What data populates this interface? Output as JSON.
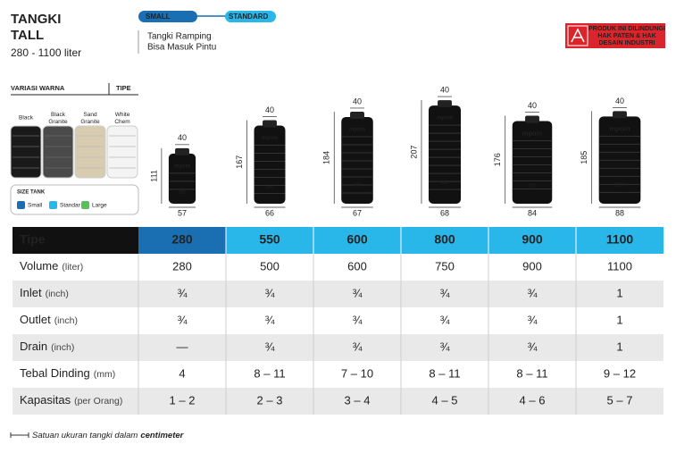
{
  "header": {
    "title": [
      "TANGKI",
      "TALL"
    ],
    "capacity": "280 - 1100 liter",
    "tags": [
      "SMALL",
      "STANDARD"
    ],
    "description": [
      "Tangki Ramping",
      "Bisa Masuk Pintu"
    ],
    "badge": [
      "PRODUK INI DILINDUNGI",
      "HAK PATEN & HAK",
      "DESAIN INDUSTRI"
    ]
  },
  "variants": {
    "title": "VARIASI WARNA",
    "type_title": "TIPE",
    "colors": [
      "Black",
      "Black Granite",
      "Sand Granite",
      "White Chem"
    ],
    "size_title": "SIZE TANK",
    "sizes": [
      "Small",
      "Standar",
      "Large"
    ]
  },
  "brand": "mpoin",
  "tanks": [
    {
      "top": 40,
      "height": 111,
      "base": 57
    },
    {
      "top": 40,
      "height": 167,
      "base": 66
    },
    {
      "top": 40,
      "height": 184,
      "base": 67
    },
    {
      "top": 40,
      "height": 207,
      "base": 68
    },
    {
      "top": 40,
      "height": 176,
      "base": 84
    },
    {
      "top": 40,
      "height": 185,
      "base": 88
    }
  ],
  "table": {
    "header": [
      "Tipe",
      "280",
      "550",
      "600",
      "800",
      "900",
      "1100"
    ],
    "rows": [
      {
        "label": "Volume",
        "unit": "(liter)",
        "values": [
          "280",
          "500",
          "600",
          "750",
          "900",
          "1100"
        ]
      },
      {
        "label": "Inlet",
        "unit": "(inch)",
        "values": [
          "¾",
          "¾",
          "¾",
          "¾",
          "¾",
          "1"
        ]
      },
      {
        "label": "Outlet",
        "unit": "(inch)",
        "values": [
          "¾",
          "¾",
          "¾",
          "¾",
          "¾",
          "1"
        ]
      },
      {
        "label": "Drain",
        "unit": "(inch)",
        "values": [
          "—",
          "¾",
          "¾",
          "¾",
          "¾",
          "1"
        ]
      },
      {
        "label": "Tebal Dinding",
        "unit": "(mm)",
        "values": [
          "4",
          "8 – 11",
          "7 – 10",
          "8 – 11",
          "8 – 11",
          "9 – 12"
        ]
      },
      {
        "label": "Kapasitas",
        "unit": "(per Orang)",
        "values": [
          "1 – 2",
          "2 – 3",
          "3 – 4",
          "4 – 5",
          "4 – 6",
          "5 – 7"
        ]
      }
    ]
  },
  "footer": {
    "text": "Satuan ukuran tangki dalam",
    "emphasis": "centimeter"
  }
}
